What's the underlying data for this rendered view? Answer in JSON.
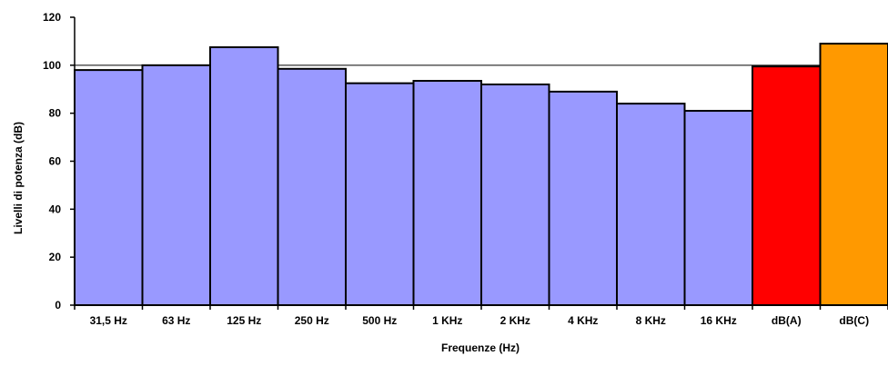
{
  "chart_data": {
    "type": "bar",
    "xlabel": "Frequenze (Hz)",
    "ylabel": "Livelli di potenza (dB)",
    "ylim": [
      0,
      120
    ],
    "yticks": [
      0,
      20,
      40,
      60,
      80,
      100,
      120
    ],
    "grid": "horizontal gridline at 100",
    "categories": [
      "31,5 Hz",
      "63 Hz",
      "125 Hz",
      "250 Hz",
      "500 Hz",
      "1 KHz",
      "2 KHz",
      "4 KHz",
      "8 KHz",
      "16 KHz",
      "dB(A)",
      "dB(C)"
    ],
    "values": [
      98,
      100,
      107.5,
      98.5,
      92.5,
      93.5,
      92,
      89,
      84,
      81,
      99.5,
      109
    ],
    "colors": [
      "#9999ff",
      "#9999ff",
      "#9999ff",
      "#9999ff",
      "#9999ff",
      "#9999ff",
      "#9999ff",
      "#9999ff",
      "#9999ff",
      "#9999ff",
      "#ff0000",
      "#ff9900"
    ]
  }
}
